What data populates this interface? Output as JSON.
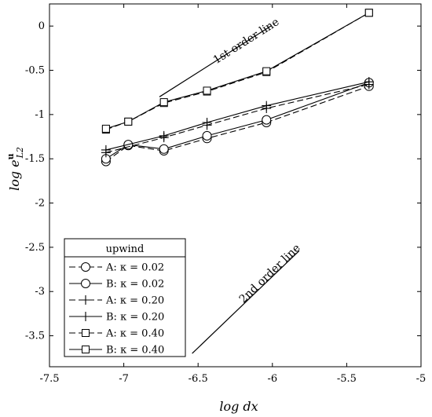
{
  "chart_data": {
    "type": "line",
    "xlabel": "log dx",
    "ylabel": "log e^u_L2",
    "xlim": [
      -7.5,
      -5
    ],
    "ylim": [
      -3.85,
      0.25
    ],
    "xticks": [
      "-7.5",
      "-7",
      "-6.5",
      "-6",
      "-5.5",
      "-5"
    ],
    "yticks": [
      "0",
      "-0.5",
      "-1",
      "-1.5",
      "-2",
      "-2.5",
      "-3",
      "-3.5"
    ],
    "legend": {
      "title": "upwind",
      "placement": "bottom-left"
    },
    "series": [
      {
        "name": "A: κ = 0.02",
        "marker": "circle",
        "dash": true,
        "x": [
          -7.12,
          -6.97,
          -6.73,
          -6.44,
          -6.04,
          -5.35
        ],
        "y": [
          -1.53,
          -1.35,
          -1.41,
          -1.27,
          -1.09,
          -0.68
        ]
      },
      {
        "name": "B: κ = 0.02",
        "marker": "circle",
        "dash": false,
        "x": [
          -7.12,
          -6.97,
          -6.73,
          -6.44,
          -6.04,
          -5.35
        ],
        "y": [
          -1.5,
          -1.34,
          -1.39,
          -1.24,
          -1.06,
          -0.64
        ]
      },
      {
        "name": "A: κ = 0.20",
        "marker": "plus",
        "dash": true,
        "x": [
          -7.12,
          -6.73,
          -6.44,
          -6.04,
          -5.35
        ],
        "y": [
          -1.43,
          -1.26,
          -1.12,
          -0.93,
          -0.66
        ]
      },
      {
        "name": "B: κ = 0.20",
        "marker": "plus",
        "dash": false,
        "x": [
          -7.12,
          -6.73,
          -6.44,
          -6.04,
          -5.35
        ],
        "y": [
          -1.4,
          -1.24,
          -1.09,
          -0.9,
          -0.63
        ]
      },
      {
        "name": "A: κ = 0.40",
        "marker": "square",
        "dash": true,
        "x": [
          -7.12,
          -6.97,
          -6.73,
          -6.44,
          -6.04,
          -5.35
        ],
        "y": [
          -1.17,
          -1.08,
          -0.87,
          -0.74,
          -0.52,
          0.15
        ]
      },
      {
        "name": "B: κ = 0.40",
        "marker": "square",
        "dash": false,
        "x": [
          -7.12,
          -6.97,
          -6.73,
          -6.44,
          -6.04,
          -5.35
        ],
        "y": [
          -1.16,
          -1.08,
          -0.86,
          -0.73,
          -0.51,
          0.15
        ]
      }
    ],
    "reference_lines": [
      {
        "label": "1st order line",
        "x": [
          -6.76,
          -6.01
        ],
        "y": [
          -0.8,
          0.0
        ]
      },
      {
        "label": "2nd order line",
        "x": [
          -6.54,
          -5.82
        ],
        "y": [
          -3.7,
          -2.54
        ]
      }
    ]
  }
}
